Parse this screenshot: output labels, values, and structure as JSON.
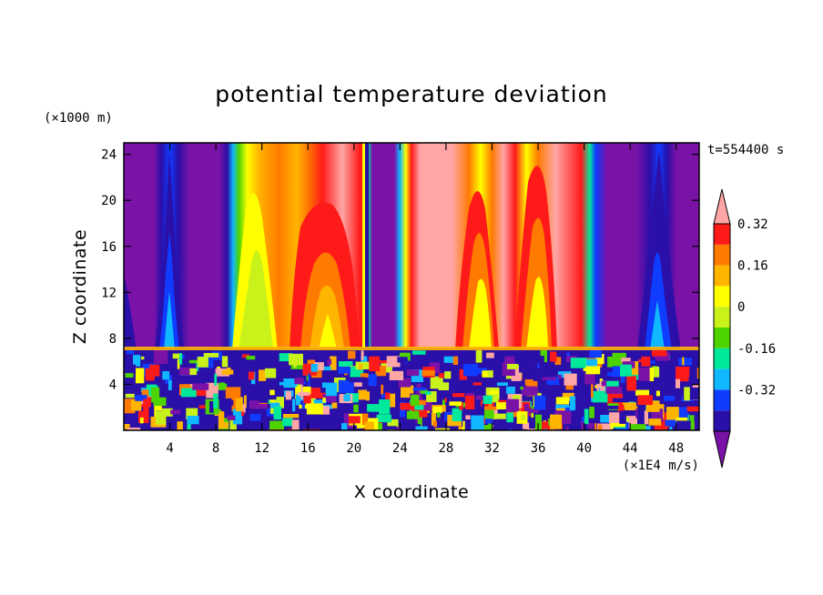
{
  "chart_data": {
    "type": "heatmap",
    "title": "potential temperature deviation",
    "xlabel": "X coordinate",
    "ylabel": "Z coordinate",
    "x_unit": "(×1E4 m/s)",
    "y_unit": "(×1000 m)",
    "time_label": "t=554400 s",
    "xlim": [
      0,
      50
    ],
    "ylim": [
      0,
      25
    ],
    "x_ticks": [
      4,
      8,
      12,
      16,
      20,
      24,
      28,
      32,
      36,
      40,
      44,
      48
    ],
    "y_ticks": [
      4,
      8,
      12,
      16,
      20,
      24
    ],
    "colorbar": {
      "levels": [
        -0.48,
        -0.4,
        -0.32,
        -0.24,
        -0.16,
        -0.08,
        0,
        0.08,
        0.16,
        0.24,
        0.32,
        0.4
      ],
      "tick_labels": [
        "0.32",
        "0.16",
        "0",
        "-0.16",
        "-0.32"
      ],
      "tick_values": [
        0.32,
        0.16,
        0,
        -0.16,
        -0.32
      ],
      "colors": [
        "#7a12a8",
        "#2a0fa8",
        "#0f3cff",
        "#10b8ff",
        "#00e89a",
        "#4cd300",
        "#c8f21a",
        "#ffff00",
        "#ffb400",
        "#ff7a00",
        "#ff1a1a",
        "#ffa6a6"
      ]
    },
    "upper_layer": {
      "z_range": [
        7,
        25
      ],
      "columns": [
        {
          "x": 4,
          "value": -0.28,
          "note": "blue column"
        },
        {
          "x": 11,
          "value": 0.2,
          "note": "yellow column"
        },
        {
          "x": 18,
          "value": 0.3,
          "note": "orange-red column"
        },
        {
          "x": 22,
          "value": -0.45
        },
        {
          "x": 31,
          "value": 0.22
        },
        {
          "x": 36,
          "value": 0.24
        },
        {
          "x": 46,
          "value": -0.3
        }
      ]
    },
    "lower_layer": {
      "z_range": [
        0,
        7
      ],
      "note": "turbulent mixed colors"
    }
  }
}
